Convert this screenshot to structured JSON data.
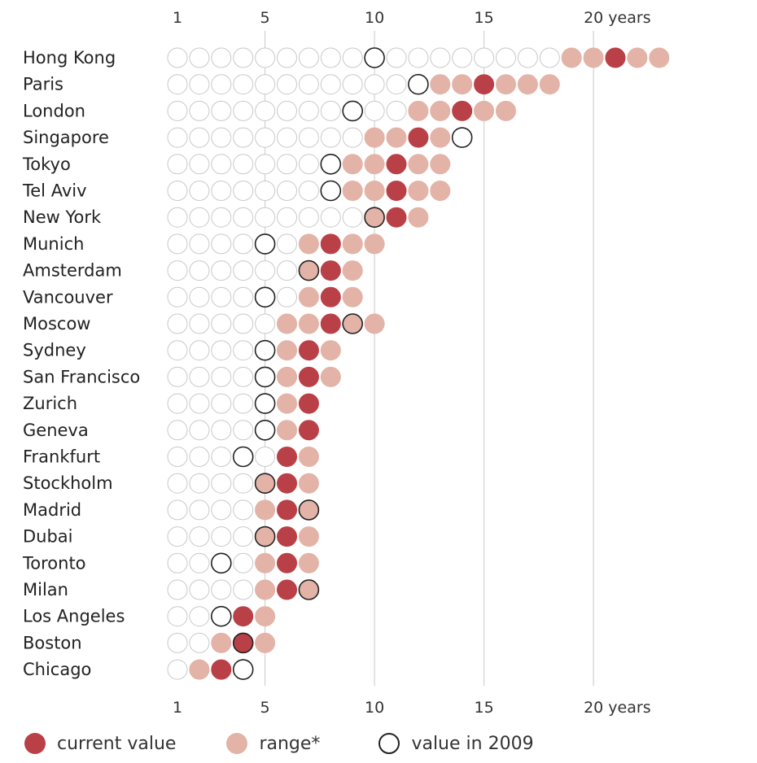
{
  "chart_data": {
    "type": "dot",
    "x_ticks": [
      {
        "value": 1,
        "label": "1"
      },
      {
        "value": 5,
        "label": "5"
      },
      {
        "value": 10,
        "label": "10"
      },
      {
        "value": 15,
        "label": "15"
      },
      {
        "value": 20,
        "label": "20 years"
      }
    ],
    "series": [
      {
        "key": "current",
        "name": "current value",
        "color": "#b94046"
      },
      {
        "key": "range",
        "name": "range*",
        "color": "#e2b3a6"
      },
      {
        "key": "v2009",
        "name": "value in 2009",
        "color": "#222222"
      }
    ],
    "cities": [
      {
        "name": "Hong Kong",
        "range": [
          19,
          23
        ],
        "current": 21,
        "v2009": 10
      },
      {
        "name": "Paris",
        "range": [
          13,
          18
        ],
        "current": 15,
        "v2009": 12
      },
      {
        "name": "London",
        "range": [
          12,
          16
        ],
        "current": 14,
        "v2009": 9
      },
      {
        "name": "Singapore",
        "range": [
          10,
          13
        ],
        "current": 12,
        "v2009": 14
      },
      {
        "name": "Tokyo",
        "range": [
          9,
          13
        ],
        "current": 11,
        "v2009": 8
      },
      {
        "name": "Tel Aviv",
        "range": [
          9,
          13
        ],
        "current": 11,
        "v2009": 8
      },
      {
        "name": "New York",
        "range": [
          10,
          12
        ],
        "current": 11,
        "v2009": 10
      },
      {
        "name": "Munich",
        "range": [
          7,
          10
        ],
        "current": 8,
        "v2009": 5
      },
      {
        "name": "Amsterdam",
        "range": [
          7,
          9
        ],
        "current": 8,
        "v2009": 7
      },
      {
        "name": "Vancouver",
        "range": [
          7,
          9
        ],
        "current": 8,
        "v2009": 5
      },
      {
        "name": "Moscow",
        "range": [
          6,
          10
        ],
        "current": 8,
        "v2009": 9
      },
      {
        "name": "Sydney",
        "range": [
          6,
          8
        ],
        "current": 7,
        "v2009": 5
      },
      {
        "name": "San Francisco",
        "range": [
          6,
          8
        ],
        "current": 7,
        "v2009": 5
      },
      {
        "name": "Zurich",
        "range": [
          6,
          7
        ],
        "current": 7,
        "v2009": 5
      },
      {
        "name": "Geneva",
        "range": [
          6,
          7
        ],
        "current": 7,
        "v2009": 5
      },
      {
        "name": "Frankfurt",
        "range": [
          6,
          7
        ],
        "current": 6,
        "v2009": 4
      },
      {
        "name": "Stockholm",
        "range": [
          5,
          7
        ],
        "current": 6,
        "v2009": 5
      },
      {
        "name": "Madrid",
        "range": [
          5,
          7
        ],
        "current": 6,
        "v2009": 7
      },
      {
        "name": "Dubai",
        "range": [
          5,
          7
        ],
        "current": 6,
        "v2009": 5
      },
      {
        "name": "Toronto",
        "range": [
          5,
          7
        ],
        "current": 6,
        "v2009": 3
      },
      {
        "name": "Milan",
        "range": [
          5,
          7
        ],
        "current": 6,
        "v2009": 7
      },
      {
        "name": "Los Angeles",
        "range": [
          4,
          5
        ],
        "current": 4,
        "v2009": 3
      },
      {
        "name": "Boston",
        "range": [
          3,
          5
        ],
        "current": 4,
        "v2009": 4
      },
      {
        "name": "Chicago",
        "range": [
          2,
          3
        ],
        "current": 3,
        "v2009": 4
      }
    ]
  },
  "legend": {
    "current_label": "current value",
    "range_label": "range*",
    "v2009_label": "value in 2009"
  }
}
